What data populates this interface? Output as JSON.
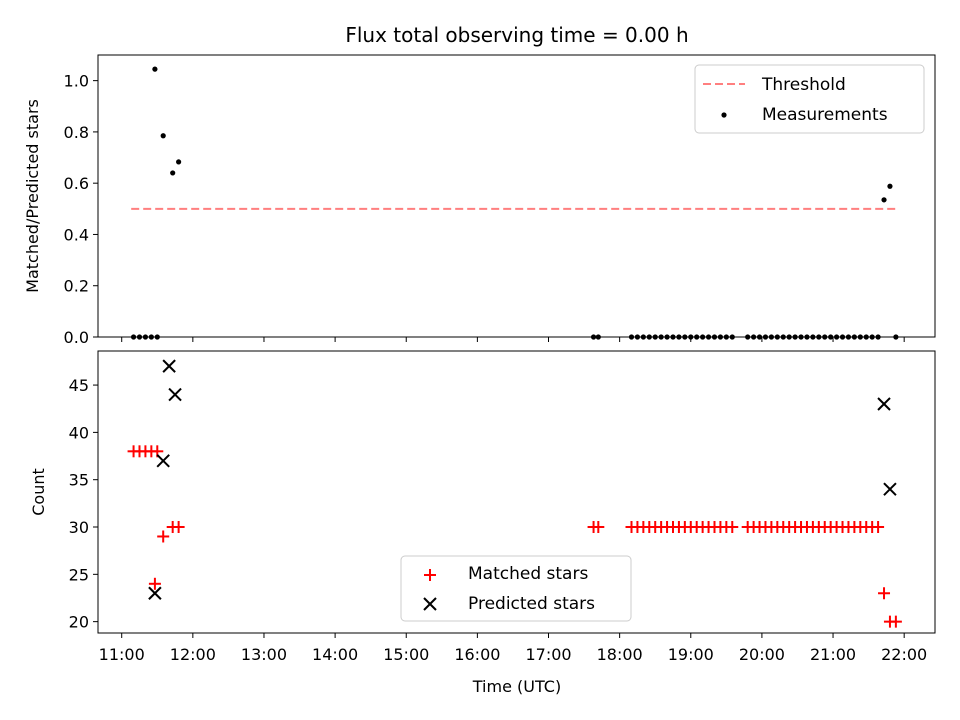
{
  "figure": {
    "title": "Flux total observing time = 0.00 h"
  },
  "chart_data": [
    {
      "type": "scatter",
      "panel": "top",
      "ylabel": "Matched/Predicted stars",
      "ylim": [
        0.0,
        1.1
      ],
      "y_ticks": [
        0.0,
        0.2,
        0.4,
        0.6,
        0.8,
        1.0
      ],
      "y_tick_labels": [
        "0.0",
        "0.2",
        "0.4",
        "0.6",
        "0.8",
        "1.0"
      ],
      "threshold": {
        "name": "Threshold",
        "value": 0.5,
        "x_range": [
          "11:08",
          "21:55"
        ],
        "color": "#ff7f7f"
      },
      "series": [
        {
          "name": "Measurements",
          "color": "#000000",
          "points": [
            [
              "11:10",
              0
            ],
            [
              "11:15",
              0
            ],
            [
              "11:20",
              0
            ],
            [
              "11:25",
              0
            ],
            [
              "11:30",
              0
            ],
            [
              "11:28",
              1.045
            ],
            [
              "11:35",
              0.785
            ],
            [
              "11:43",
              0.64
            ],
            [
              "11:48",
              0.683
            ],
            [
              "17:38",
              0
            ],
            [
              "17:42",
              0
            ],
            [
              "18:10",
              0
            ],
            [
              "18:15",
              0
            ],
            [
              "18:20",
              0
            ],
            [
              "18:25",
              0
            ],
            [
              "18:30",
              0
            ],
            [
              "18:35",
              0
            ],
            [
              "18:40",
              0
            ],
            [
              "18:45",
              0
            ],
            [
              "18:50",
              0
            ],
            [
              "18:55",
              0
            ],
            [
              "19:00",
              0
            ],
            [
              "19:05",
              0
            ],
            [
              "19:10",
              0
            ],
            [
              "19:15",
              0
            ],
            [
              "19:20",
              0
            ],
            [
              "19:25",
              0
            ],
            [
              "19:30",
              0
            ],
            [
              "19:35",
              0
            ],
            [
              "19:48",
              0
            ],
            [
              "19:53",
              0
            ],
            [
              "19:58",
              0
            ],
            [
              "20:03",
              0
            ],
            [
              "20:08",
              0
            ],
            [
              "20:13",
              0
            ],
            [
              "20:18",
              0
            ],
            [
              "20:23",
              0
            ],
            [
              "20:28",
              0
            ],
            [
              "20:33",
              0
            ],
            [
              "20:38",
              0
            ],
            [
              "20:43",
              0
            ],
            [
              "20:48",
              0
            ],
            [
              "20:53",
              0
            ],
            [
              "20:58",
              0
            ],
            [
              "21:03",
              0
            ],
            [
              "21:08",
              0
            ],
            [
              "21:13",
              0
            ],
            [
              "21:18",
              0
            ],
            [
              "21:23",
              0
            ],
            [
              "21:28",
              0
            ],
            [
              "21:33",
              0
            ],
            [
              "21:38",
              0
            ],
            [
              "21:43",
              0.535
            ],
            [
              "21:48",
              0.588
            ],
            [
              "21:53",
              0
            ]
          ]
        }
      ],
      "legend": {
        "position": "top-right",
        "entries": [
          "Threshold",
          "Measurements"
        ]
      },
      "grid": false
    },
    {
      "type": "scatter",
      "panel": "bottom",
      "xlabel": "Time (UTC)",
      "ylabel": "Count",
      "ylim": [
        18.8,
        48.6
      ],
      "xlim": [
        "10:40",
        "22:26"
      ],
      "y_ticks": [
        20,
        25,
        30,
        35,
        40,
        45
      ],
      "y_tick_labels": [
        "20",
        "25",
        "30",
        "35",
        "40",
        "45"
      ],
      "x_ticks": [
        "11:00",
        "12:00",
        "13:00",
        "14:00",
        "15:00",
        "16:00",
        "17:00",
        "18:00",
        "19:00",
        "20:00",
        "21:00",
        "22:00"
      ],
      "x_tick_labels": [
        "11:00",
        "12:00",
        "13:00",
        "14:00",
        "15:00",
        "16:00",
        "17:00",
        "18:00",
        "19:00",
        "20:00",
        "21:00",
        "22:00"
      ],
      "series": [
        {
          "name": "Matched stars",
          "marker": "plus",
          "color": "#ff0000",
          "points": [
            [
              "11:10",
              38
            ],
            [
              "11:15",
              38
            ],
            [
              "11:20",
              38
            ],
            [
              "11:25",
              38
            ],
            [
              "11:30",
              38
            ],
            [
              "11:28",
              24
            ],
            [
              "11:35",
              29
            ],
            [
              "11:43",
              30
            ],
            [
              "11:48",
              30
            ],
            [
              "17:38",
              30
            ],
            [
              "17:42",
              30
            ],
            [
              "18:10",
              30
            ],
            [
              "18:15",
              30
            ],
            [
              "18:20",
              30
            ],
            [
              "18:25",
              30
            ],
            [
              "18:30",
              30
            ],
            [
              "18:35",
              30
            ],
            [
              "18:40",
              30
            ],
            [
              "18:45",
              30
            ],
            [
              "18:50",
              30
            ],
            [
              "18:55",
              30
            ],
            [
              "19:00",
              30
            ],
            [
              "19:05",
              30
            ],
            [
              "19:10",
              30
            ],
            [
              "19:15",
              30
            ],
            [
              "19:20",
              30
            ],
            [
              "19:25",
              30
            ],
            [
              "19:30",
              30
            ],
            [
              "19:35",
              30
            ],
            [
              "19:48",
              30
            ],
            [
              "19:53",
              30
            ],
            [
              "19:58",
              30
            ],
            [
              "20:03",
              30
            ],
            [
              "20:08",
              30
            ],
            [
              "20:13",
              30
            ],
            [
              "20:18",
              30
            ],
            [
              "20:23",
              30
            ],
            [
              "20:28",
              30
            ],
            [
              "20:33",
              30
            ],
            [
              "20:38",
              30
            ],
            [
              "20:43",
              30
            ],
            [
              "20:48",
              30
            ],
            [
              "20:53",
              30
            ],
            [
              "20:58",
              30
            ],
            [
              "21:03",
              30
            ],
            [
              "21:08",
              30
            ],
            [
              "21:13",
              30
            ],
            [
              "21:18",
              30
            ],
            [
              "21:23",
              30
            ],
            [
              "21:28",
              30
            ],
            [
              "21:33",
              30
            ],
            [
              "21:38",
              30
            ],
            [
              "21:43",
              23
            ],
            [
              "21:48",
              20
            ],
            [
              "21:53",
              20
            ]
          ]
        },
        {
          "name": "Predicted stars",
          "marker": "x",
          "color": "#000000",
          "points": [
            [
              "11:28",
              23
            ],
            [
              "11:35",
              37
            ],
            [
              "11:40",
              47
            ],
            [
              "11:45",
              44
            ],
            [
              "21:43",
              43
            ],
            [
              "21:48",
              34
            ]
          ]
        }
      ],
      "legend": {
        "position": "bottom-center",
        "entries": [
          "Matched stars",
          "Predicted stars"
        ]
      },
      "grid": false
    }
  ]
}
